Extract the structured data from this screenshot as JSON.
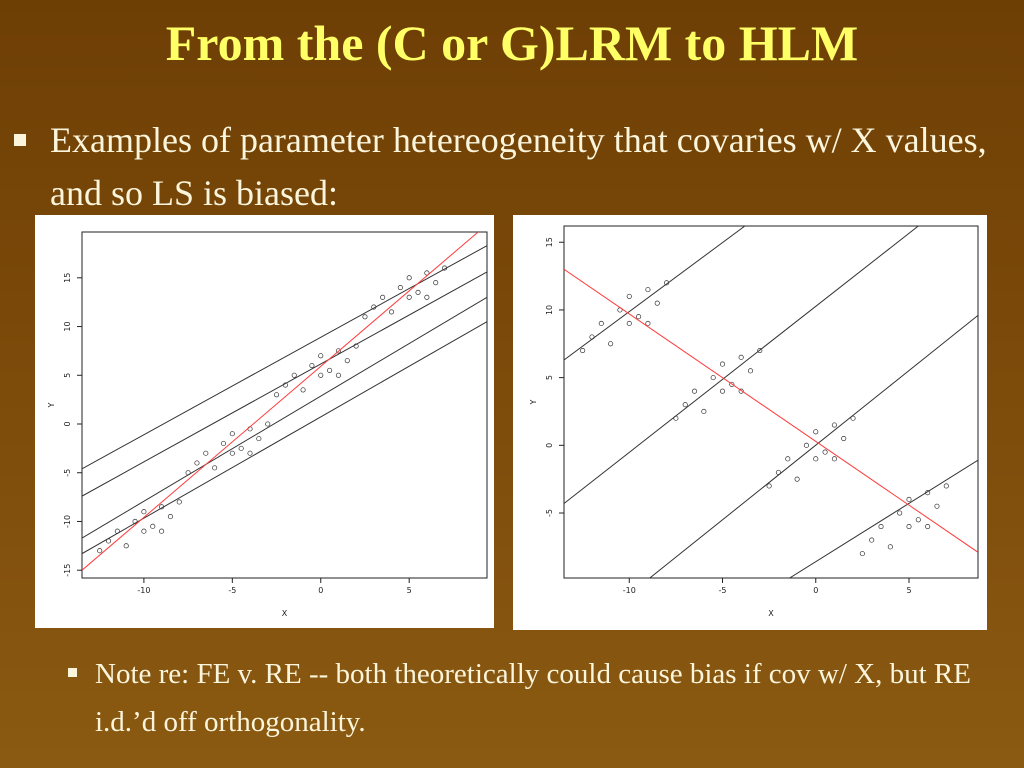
{
  "title": "From the (C or G)LRM to HLM",
  "bullets": [
    "Examples of parameter hetereogeneity that covaries w/ X values, and so LS is biased:"
  ],
  "sub_bullets": [
    "Note re: FE v. RE -- both theoretically could cause bias if cov w/ X, but RE i.d.’d off orthogonality."
  ],
  "chart_data": [
    {
      "type": "scatter",
      "x_label": "X",
      "y_label": "Y",
      "xlim": [
        -13.5,
        9.4
      ],
      "ylim": [
        -15.8,
        19.7
      ],
      "xticks": [
        -10,
        -5,
        0,
        5
      ],
      "yticks": [
        -15,
        -10,
        -5,
        0,
        5,
        10,
        15
      ],
      "color": "#333333",
      "x": [
        -12,
        -11.5,
        -11,
        -10.5,
        -10,
        -10,
        -9.5,
        -9,
        -8.5,
        -8,
        -12.5,
        -9,
        -7,
        -6.5,
        -6,
        -5.5,
        -5,
        -5,
        -4.5,
        -4,
        -3.5,
        -3,
        -7.5,
        -4,
        -2,
        -1.5,
        -1,
        -0.5,
        0,
        0,
        0.5,
        1,
        1.5,
        2,
        -2.5,
        1,
        3,
        3.5,
        4,
        4.5,
        5,
        5,
        5.5,
        6,
        6.5,
        7,
        2.5,
        6
      ],
      "values": [
        -12,
        -11,
        -12.5,
        -10,
        -11,
        -9,
        -10.5,
        -8.5,
        -9.5,
        -8,
        -13,
        -11,
        -4,
        -3,
        -4.5,
        -2,
        -3,
        -1,
        -2.5,
        -0.5,
        -1.5,
        0,
        -5,
        -3,
        4,
        5,
        3.5,
        6,
        5,
        7,
        5.5,
        7.5,
        6.5,
        8,
        3,
        5,
        12,
        13,
        11.5,
        14,
        13,
        15,
        13.5,
        15.5,
        14.5,
        16,
        11,
        13
      ],
      "lines": [
        {
          "color": "#333333",
          "x": [
            -13.5,
            9.4
          ],
          "values": [
            -4.6,
            18.3
          ]
        },
        {
          "color": "#333333",
          "x": [
            -13.5,
            9.4
          ],
          "values": [
            -7.4,
            15.6
          ]
        },
        {
          "color": "#333333",
          "x": [
            -13.5,
            9.4
          ],
          "values": [
            -11.7,
            13.0
          ]
        },
        {
          "color": "#333333",
          "x": [
            -13.5,
            9.4
          ],
          "values": [
            -13.3,
            10.5
          ]
        },
        {
          "color": "#ff3b3b",
          "x": [
            -13.5,
            8.9
          ],
          "values": [
            -15,
            19.7
          ]
        }
      ]
    },
    {
      "type": "scatter",
      "x_label": "X",
      "y_label": "Y",
      "xlim": [
        -13.5,
        8.7
      ],
      "ylim": [
        -9.8,
        16.2
      ],
      "xticks": [
        -10,
        -5,
        0,
        5
      ],
      "yticks": [
        -5,
        0,
        5,
        10,
        15
      ],
      "color": "#333333",
      "x": [
        -12,
        -11.5,
        -11,
        -10.5,
        -10,
        -10,
        -9.5,
        -9,
        -8.5,
        -8,
        -12.5,
        -9,
        -7,
        -6.5,
        -6,
        -5.5,
        -5,
        -5,
        -4.5,
        -4,
        -3.5,
        -3,
        -7.5,
        -4,
        -2,
        -1.5,
        -1,
        -0.5,
        0,
        0,
        0.5,
        1,
        1.5,
        2,
        -2.5,
        1,
        3,
        3.5,
        4,
        4.5,
        5,
        5,
        5.5,
        6,
        6.5,
        7,
        2.5,
        6
      ],
      "values": [
        8,
        9,
        7.5,
        10,
        9,
        11,
        9.5,
        11.5,
        10.5,
        12,
        7,
        9,
        3,
        4,
        2.5,
        5,
        4,
        6,
        4.5,
        6.5,
        5.5,
        7,
        2,
        4,
        -2,
        -1,
        -2.5,
        0,
        -1,
        1,
        -0.5,
        1.5,
        0.5,
        2,
        -3,
        -1,
        -7,
        -6,
        -7.5,
        -5,
        -6,
        -4,
        -5.5,
        -3.5,
        -4.5,
        -3,
        -8,
        -6
      ],
      "lines": [
        {
          "color": "#333333",
          "x": [
            -13.5,
            -3.8
          ],
          "values": [
            6.3,
            16.2
          ]
        },
        {
          "color": "#333333",
          "x": [
            -13.5,
            5.5
          ],
          "values": [
            -4.3,
            16.2
          ]
        },
        {
          "color": "#333333",
          "x": [
            -8.9,
            8.7
          ],
          "values": [
            -9.8,
            9.6
          ]
        },
        {
          "color": "#333333",
          "x": [
            -1.4,
            8.7
          ],
          "values": [
            -9.8,
            -1.1
          ]
        },
        {
          "color": "#ff3b3b",
          "x": [
            -13.5,
            8.7
          ],
          "values": [
            13,
            -7.9
          ]
        }
      ]
    }
  ]
}
